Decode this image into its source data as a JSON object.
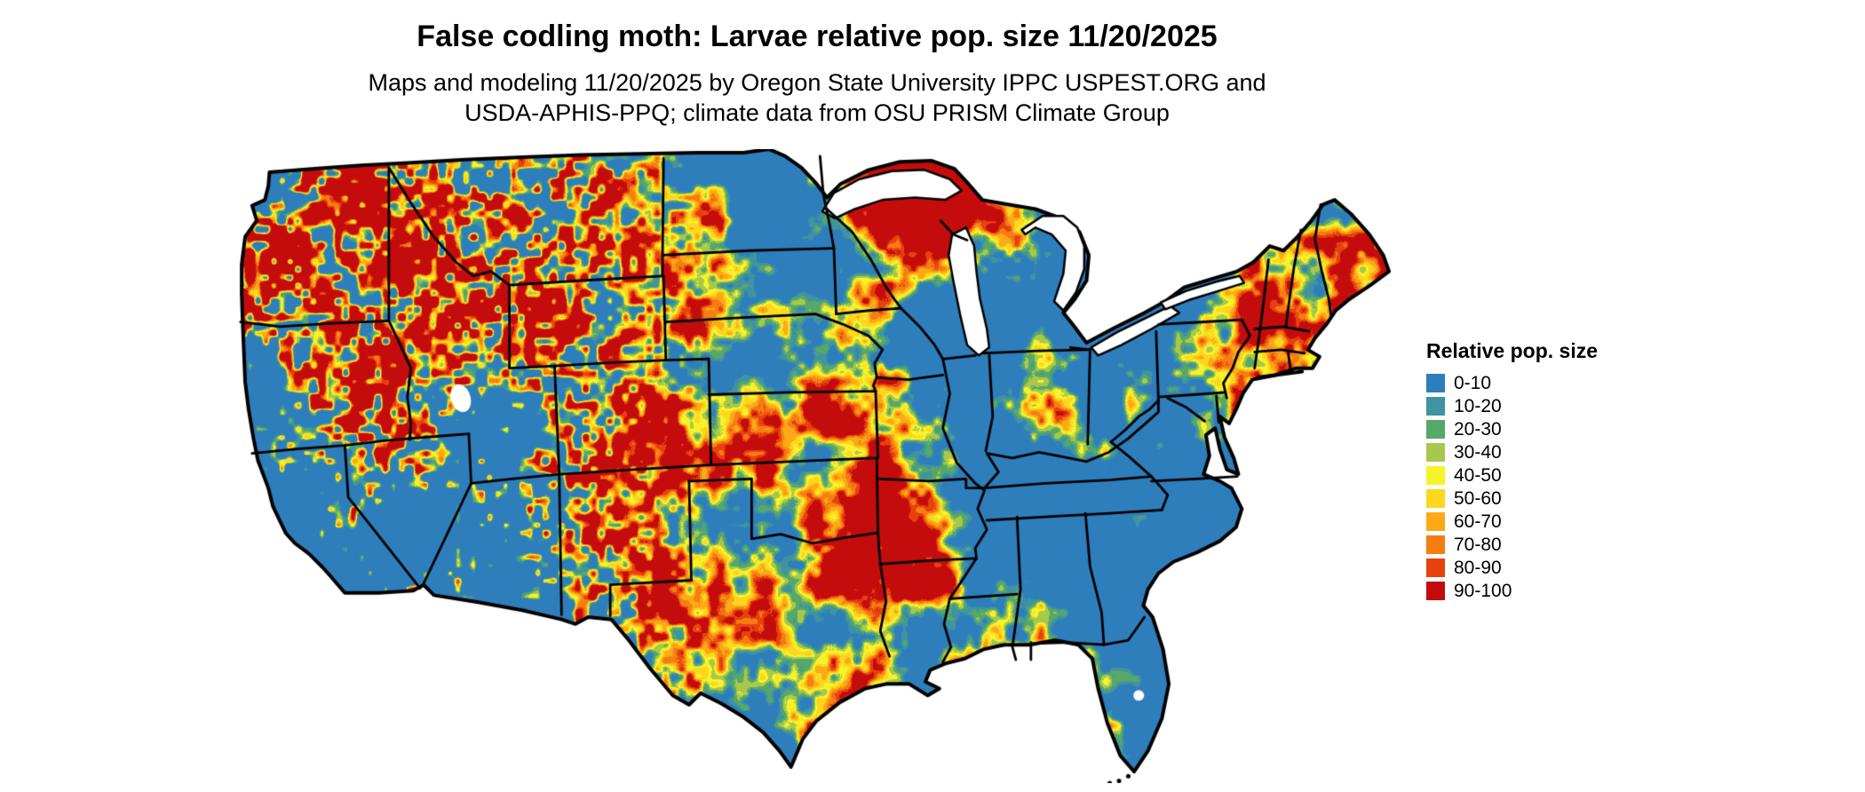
{
  "title": "False codling moth: Larvae relative pop. size 11/20/2025",
  "subtitle_line1": "Maps and modeling 11/20/2025 by Oregon State University IPPC USPEST.ORG and",
  "subtitle_line2": "USDA-APHIS-PPQ; climate data from OSU PRISM Climate Group",
  "legend": {
    "title": "Relative pop. size",
    "items": [
      {
        "label": "0-10",
        "color": "#2e7ebc"
      },
      {
        "label": "10-20",
        "color": "#3f93a2"
      },
      {
        "label": "20-30",
        "color": "#55a868"
      },
      {
        "label": "30-40",
        "color": "#a8c84c"
      },
      {
        "label": "40-50",
        "color": "#f7f32b"
      },
      {
        "label": "50-60",
        "color": "#fcd71e"
      },
      {
        "label": "60-70",
        "color": "#fbaa16"
      },
      {
        "label": "70-80",
        "color": "#f57d12"
      },
      {
        "label": "80-90",
        "color": "#e7410e"
      },
      {
        "label": "90-100",
        "color": "#c40c0c"
      }
    ]
  }
}
